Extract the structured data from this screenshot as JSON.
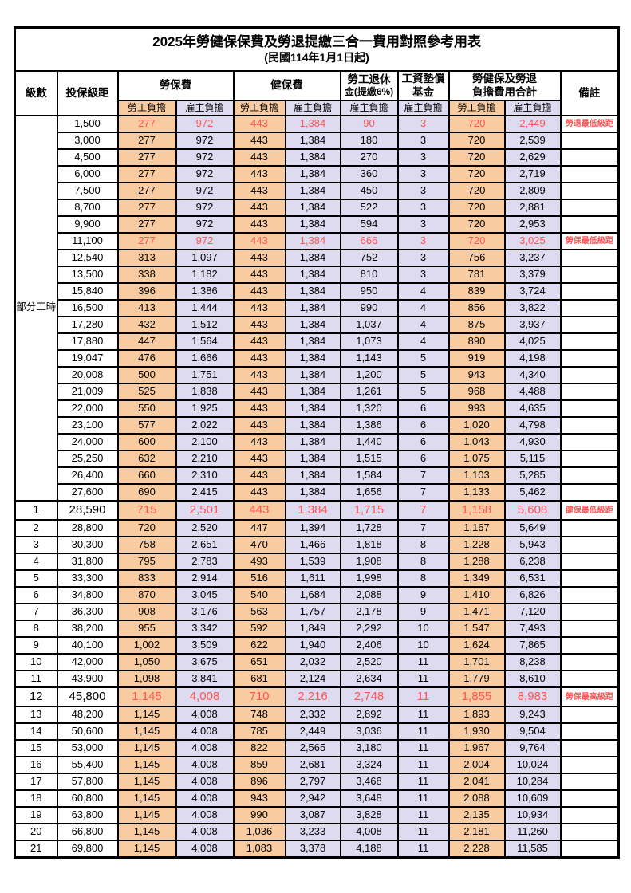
{
  "table": {
    "title": "2025年勞健保保費及勞退提繳三合一費用對照參考用表",
    "subtitle": "(民國114年1月1日起)",
    "columns": {
      "grade": "級數",
      "bracket": "投保級距",
      "labor_ins": "勞保費",
      "health_ins": "健保費",
      "pension_line1": "勞工退休",
      "pension_line2": "金(提繳6%)",
      "wage_fund_line1": "工資墊償",
      "wage_fund_line2": "基金",
      "total_line1": "勞健保及勞退",
      "total_line2": "負擔費用合計",
      "remark": "備註",
      "employee_share": "勞工負擔",
      "employer_share": "雇主負擔"
    },
    "part_time_label": "部分工時",
    "part_time_rowspan": 23,
    "colors": {
      "employee_bg": "#F8CBA0",
      "employer_bg": "#DEDBF0",
      "highlight_text": "#FF5454"
    },
    "rows": [
      {
        "grade": "",
        "bracket": "1,500",
        "values": [
          "277",
          "972",
          "443",
          "1,384",
          "90",
          "3",
          "720",
          "2,449"
        ],
        "remark": "勞退最低級距",
        "highlight": true,
        "large": false,
        "section": false
      },
      {
        "grade": "",
        "bracket": "3,000",
        "values": [
          "277",
          "972",
          "443",
          "1,384",
          "180",
          "3",
          "720",
          "2,539"
        ],
        "remark": "",
        "highlight": false,
        "large": false,
        "section": false
      },
      {
        "grade": "",
        "bracket": "4,500",
        "values": [
          "277",
          "972",
          "443",
          "1,384",
          "270",
          "3",
          "720",
          "2,629"
        ],
        "remark": "",
        "highlight": false,
        "large": false,
        "section": false
      },
      {
        "grade": "",
        "bracket": "6,000",
        "values": [
          "277",
          "972",
          "443",
          "1,384",
          "360",
          "3",
          "720",
          "2,719"
        ],
        "remark": "",
        "highlight": false,
        "large": false,
        "section": false
      },
      {
        "grade": "",
        "bracket": "7,500",
        "values": [
          "277",
          "972",
          "443",
          "1,384",
          "450",
          "3",
          "720",
          "2,809"
        ],
        "remark": "",
        "highlight": false,
        "large": false,
        "section": false
      },
      {
        "grade": "",
        "bracket": "8,700",
        "values": [
          "277",
          "972",
          "443",
          "1,384",
          "522",
          "3",
          "720",
          "2,881"
        ],
        "remark": "",
        "highlight": false,
        "large": false,
        "section": false
      },
      {
        "grade": "",
        "bracket": "9,900",
        "values": [
          "277",
          "972",
          "443",
          "1,384",
          "594",
          "3",
          "720",
          "2,953"
        ],
        "remark": "",
        "highlight": false,
        "large": false,
        "section": false
      },
      {
        "grade": "",
        "bracket": "11,100",
        "values": [
          "277",
          "972",
          "443",
          "1,384",
          "666",
          "3",
          "720",
          "3,025"
        ],
        "remark": "勞保最低級距",
        "highlight": true,
        "large": false,
        "section": false
      },
      {
        "grade": "",
        "bracket": "12,540",
        "values": [
          "313",
          "1,097",
          "443",
          "1,384",
          "752",
          "3",
          "756",
          "3,237"
        ],
        "remark": "",
        "highlight": false,
        "large": false,
        "section": false
      },
      {
        "grade": "",
        "bracket": "13,500",
        "values": [
          "338",
          "1,182",
          "443",
          "1,384",
          "810",
          "3",
          "781",
          "3,379"
        ],
        "remark": "",
        "highlight": false,
        "large": false,
        "section": false
      },
      {
        "grade": "",
        "bracket": "15,840",
        "values": [
          "396",
          "1,386",
          "443",
          "1,384",
          "950",
          "4",
          "839",
          "3,724"
        ],
        "remark": "",
        "highlight": false,
        "large": false,
        "section": false
      },
      {
        "grade": "",
        "bracket": "16,500",
        "values": [
          "413",
          "1,444",
          "443",
          "1,384",
          "990",
          "4",
          "856",
          "3,822"
        ],
        "remark": "",
        "highlight": false,
        "large": false,
        "section": false
      },
      {
        "grade": "",
        "bracket": "17,280",
        "values": [
          "432",
          "1,512",
          "443",
          "1,384",
          "1,037",
          "4",
          "875",
          "3,937"
        ],
        "remark": "",
        "highlight": false,
        "large": false,
        "section": false
      },
      {
        "grade": "",
        "bracket": "17,880",
        "values": [
          "447",
          "1,564",
          "443",
          "1,384",
          "1,073",
          "4",
          "890",
          "4,025"
        ],
        "remark": "",
        "highlight": false,
        "large": false,
        "section": false
      },
      {
        "grade": "",
        "bracket": "19,047",
        "values": [
          "476",
          "1,666",
          "443",
          "1,384",
          "1,143",
          "5",
          "919",
          "4,198"
        ],
        "remark": "",
        "highlight": false,
        "large": false,
        "section": false
      },
      {
        "grade": "",
        "bracket": "20,008",
        "values": [
          "500",
          "1,751",
          "443",
          "1,384",
          "1,200",
          "5",
          "943",
          "4,340"
        ],
        "remark": "",
        "highlight": false,
        "large": false,
        "section": false
      },
      {
        "grade": "",
        "bracket": "21,009",
        "values": [
          "525",
          "1,838",
          "443",
          "1,384",
          "1,261",
          "5",
          "968",
          "4,488"
        ],
        "remark": "",
        "highlight": false,
        "large": false,
        "section": false
      },
      {
        "grade": "",
        "bracket": "22,000",
        "values": [
          "550",
          "1,925",
          "443",
          "1,384",
          "1,320",
          "6",
          "993",
          "4,635"
        ],
        "remark": "",
        "highlight": false,
        "large": false,
        "section": false
      },
      {
        "grade": "",
        "bracket": "23,100",
        "values": [
          "577",
          "2,022",
          "443",
          "1,384",
          "1,386",
          "6",
          "1,020",
          "4,798"
        ],
        "remark": "",
        "highlight": false,
        "large": false,
        "section": false
      },
      {
        "grade": "",
        "bracket": "24,000",
        "values": [
          "600",
          "2,100",
          "443",
          "1,384",
          "1,440",
          "6",
          "1,043",
          "4,930"
        ],
        "remark": "",
        "highlight": false,
        "large": false,
        "section": false
      },
      {
        "grade": "",
        "bracket": "25,250",
        "values": [
          "632",
          "2,210",
          "443",
          "1,384",
          "1,515",
          "6",
          "1,075",
          "5,115"
        ],
        "remark": "",
        "highlight": false,
        "large": false,
        "section": false
      },
      {
        "grade": "",
        "bracket": "26,400",
        "values": [
          "660",
          "2,310",
          "443",
          "1,384",
          "1,584",
          "7",
          "1,103",
          "5,285"
        ],
        "remark": "",
        "highlight": false,
        "large": false,
        "section": false
      },
      {
        "grade": "",
        "bracket": "27,600",
        "values": [
          "690",
          "2,415",
          "443",
          "1,384",
          "1,656",
          "7",
          "1,133",
          "5,462"
        ],
        "remark": "",
        "highlight": false,
        "large": false,
        "section": false
      },
      {
        "grade": "1",
        "bracket": "28,590",
        "values": [
          "715",
          "2,501",
          "443",
          "1,384",
          "1,715",
          "7",
          "1,158",
          "5,608"
        ],
        "remark": "健保最低級距",
        "highlight": true,
        "large": true,
        "section": true
      },
      {
        "grade": "2",
        "bracket": "28,800",
        "values": [
          "720",
          "2,520",
          "447",
          "1,394",
          "1,728",
          "7",
          "1,167",
          "5,649"
        ],
        "remark": "",
        "highlight": false,
        "large": false,
        "section": false
      },
      {
        "grade": "3",
        "bracket": "30,300",
        "values": [
          "758",
          "2,651",
          "470",
          "1,466",
          "1,818",
          "8",
          "1,228",
          "5,943"
        ],
        "remark": "",
        "highlight": false,
        "large": false,
        "section": false
      },
      {
        "grade": "4",
        "bracket": "31,800",
        "values": [
          "795",
          "2,783",
          "493",
          "1,539",
          "1,908",
          "8",
          "1,288",
          "6,238"
        ],
        "remark": "",
        "highlight": false,
        "large": false,
        "section": false
      },
      {
        "grade": "5",
        "bracket": "33,300",
        "values": [
          "833",
          "2,914",
          "516",
          "1,611",
          "1,998",
          "8",
          "1,349",
          "6,531"
        ],
        "remark": "",
        "highlight": false,
        "large": false,
        "section": false
      },
      {
        "grade": "6",
        "bracket": "34,800",
        "values": [
          "870",
          "3,045",
          "540",
          "1,684",
          "2,088",
          "9",
          "1,410",
          "6,826"
        ],
        "remark": "",
        "highlight": false,
        "large": false,
        "section": false
      },
      {
        "grade": "7",
        "bracket": "36,300",
        "values": [
          "908",
          "3,176",
          "563",
          "1,757",
          "2,178",
          "9",
          "1,471",
          "7,120"
        ],
        "remark": "",
        "highlight": false,
        "large": false,
        "section": false
      },
      {
        "grade": "8",
        "bracket": "38,200",
        "values": [
          "955",
          "3,342",
          "592",
          "1,849",
          "2,292",
          "10",
          "1,547",
          "7,493"
        ],
        "remark": "",
        "highlight": false,
        "large": false,
        "section": false
      },
      {
        "grade": "9",
        "bracket": "40,100",
        "values": [
          "1,002",
          "3,509",
          "622",
          "1,940",
          "2,406",
          "10",
          "1,624",
          "7,865"
        ],
        "remark": "",
        "highlight": false,
        "large": false,
        "section": false
      },
      {
        "grade": "10",
        "bracket": "42,000",
        "values": [
          "1,050",
          "3,675",
          "651",
          "2,032",
          "2,520",
          "11",
          "1,701",
          "8,238"
        ],
        "remark": "",
        "highlight": false,
        "large": false,
        "section": false
      },
      {
        "grade": "11",
        "bracket": "43,900",
        "values": [
          "1,098",
          "3,841",
          "681",
          "2,124",
          "2,634",
          "11",
          "1,779",
          "8,610"
        ],
        "remark": "",
        "highlight": false,
        "large": false,
        "section": false
      },
      {
        "grade": "12",
        "bracket": "45,800",
        "values": [
          "1,145",
          "4,008",
          "710",
          "2,216",
          "2,748",
          "11",
          "1,855",
          "8,983"
        ],
        "remark": "勞保最高級距",
        "highlight": true,
        "large": true,
        "section": false
      },
      {
        "grade": "13",
        "bracket": "48,200",
        "values": [
          "1,145",
          "4,008",
          "748",
          "2,332",
          "2,892",
          "11",
          "1,893",
          "9,243"
        ],
        "remark": "",
        "highlight": false,
        "large": false,
        "section": false
      },
      {
        "grade": "14",
        "bracket": "50,600",
        "values": [
          "1,145",
          "4,008",
          "785",
          "2,449",
          "3,036",
          "11",
          "1,930",
          "9,504"
        ],
        "remark": "",
        "highlight": false,
        "large": false,
        "section": false
      },
      {
        "grade": "15",
        "bracket": "53,000",
        "values": [
          "1,145",
          "4,008",
          "822",
          "2,565",
          "3,180",
          "11",
          "1,967",
          "9,764"
        ],
        "remark": "",
        "highlight": false,
        "large": false,
        "section": false
      },
      {
        "grade": "16",
        "bracket": "55,400",
        "values": [
          "1,145",
          "4,008",
          "859",
          "2,681",
          "3,324",
          "11",
          "2,004",
          "10,024"
        ],
        "remark": "",
        "highlight": false,
        "large": false,
        "section": false
      },
      {
        "grade": "17",
        "bracket": "57,800",
        "values": [
          "1,145",
          "4,008",
          "896",
          "2,797",
          "3,468",
          "11",
          "2,041",
          "10,284"
        ],
        "remark": "",
        "highlight": false,
        "large": false,
        "section": false
      },
      {
        "grade": "18",
        "bracket": "60,800",
        "values": [
          "1,145",
          "4,008",
          "943",
          "2,942",
          "3,648",
          "11",
          "2,088",
          "10,609"
        ],
        "remark": "",
        "highlight": false,
        "large": false,
        "section": false
      },
      {
        "grade": "19",
        "bracket": "63,800",
        "values": [
          "1,145",
          "4,008",
          "990",
          "3,087",
          "3,828",
          "11",
          "2,135",
          "10,934"
        ],
        "remark": "",
        "highlight": false,
        "large": false,
        "section": false
      },
      {
        "grade": "20",
        "bracket": "66,800",
        "values": [
          "1,145",
          "4,008",
          "1,036",
          "3,233",
          "4,008",
          "11",
          "2,181",
          "11,260"
        ],
        "remark": "",
        "highlight": false,
        "large": false,
        "section": false
      },
      {
        "grade": "21",
        "bracket": "69,800",
        "values": [
          "1,145",
          "4,008",
          "1,083",
          "3,378",
          "4,188",
          "11",
          "2,228",
          "11,585"
        ],
        "remark": "",
        "highlight": false,
        "large": false,
        "section": false
      }
    ]
  }
}
